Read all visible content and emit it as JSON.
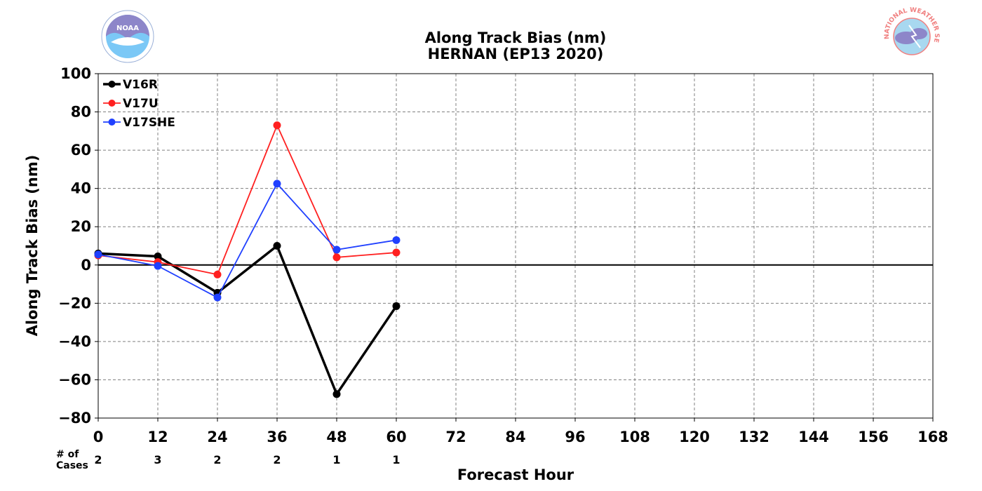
{
  "chart_data": {
    "type": "line",
    "title": "Along Track Bias (nm)",
    "subtitle": "HERNAN (EP13 2020)",
    "xlabel": "Forecast Hour",
    "ylabel": "Along Track Bias (nm)",
    "xlim": [
      0,
      168
    ],
    "ylim": [
      -80,
      100
    ],
    "xticks": [
      0,
      12,
      24,
      36,
      48,
      60,
      72,
      84,
      96,
      108,
      120,
      132,
      144,
      156,
      168
    ],
    "yticks": [
      -80,
      -60,
      -40,
      -20,
      0,
      20,
      40,
      60,
      80,
      100
    ],
    "grid": true,
    "legend_position": "top-left",
    "series": [
      {
        "name": "V16R",
        "color": "#000000",
        "x": [
          0,
          12,
          24,
          36,
          48,
          60
        ],
        "values": [
          6,
          4.5,
          -14.5,
          10,
          -67.5,
          -21.5
        ]
      },
      {
        "name": "V17U",
        "color": "#ff2020",
        "x": [
          0,
          12,
          24,
          36,
          48,
          60
        ],
        "values": [
          5,
          1.5,
          -5,
          73,
          4,
          6.5
        ]
      },
      {
        "name": "V17SHE",
        "color": "#2040ff",
        "x": [
          0,
          12,
          24,
          36,
          48,
          60
        ],
        "values": [
          5.5,
          -0.5,
          -17,
          42.5,
          8,
          13
        ]
      }
    ],
    "cases": {
      "label_line1": "# of",
      "label_line2": "Cases",
      "x": [
        0,
        12,
        24,
        36,
        48,
        60
      ],
      "counts": [
        "2",
        "3",
        "2",
        "2",
        "1",
        "1"
      ]
    }
  },
  "logos": {
    "left": {
      "name": "noaa-logo",
      "text": "NOAA",
      "colors": [
        "#7aa6d8",
        "#8d86c9",
        "#ffffff"
      ]
    },
    "right": {
      "name": "nws-logo",
      "text": "NATIONAL WEATHER SERVICE",
      "colors": [
        "#f08080",
        "#8d86c9",
        "#a8d8f0"
      ]
    }
  }
}
